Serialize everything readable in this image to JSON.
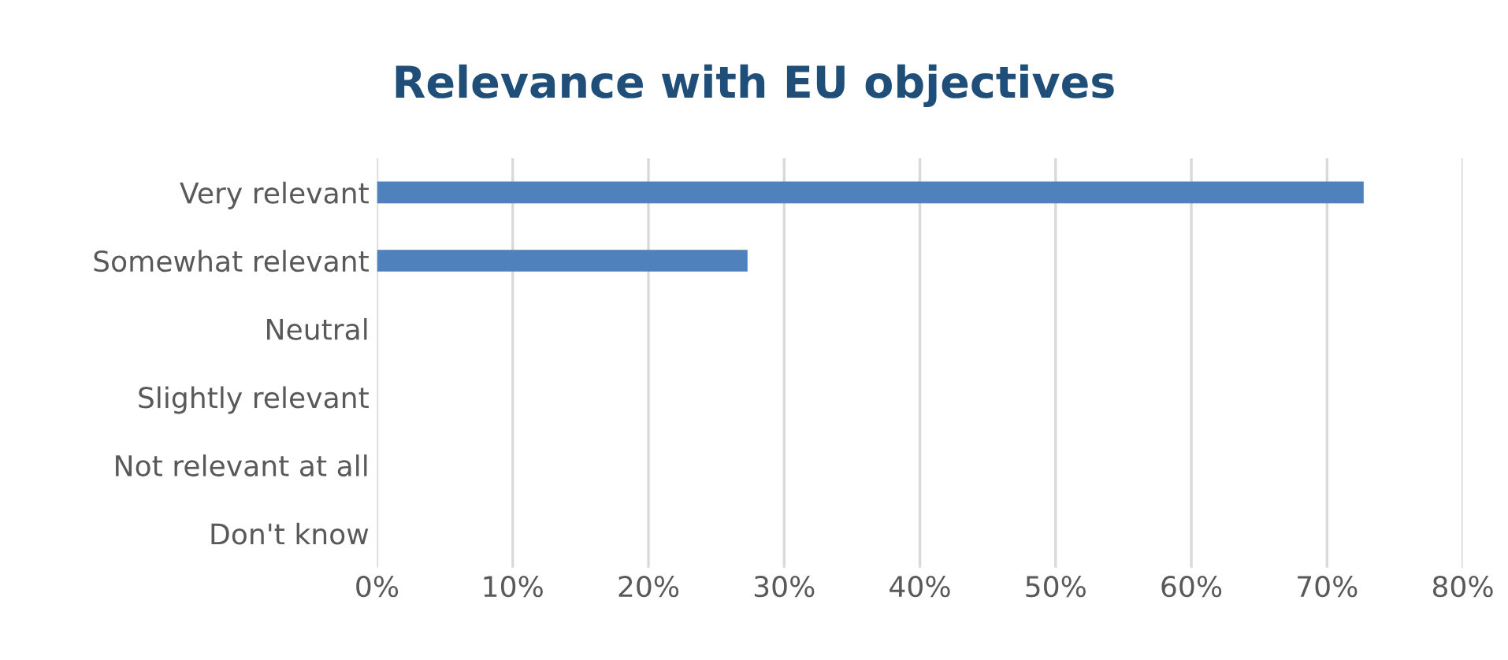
{
  "chart_data": {
    "type": "bar",
    "orientation": "horizontal",
    "title": "Relevance with EU objectives",
    "categories": [
      "Very relevant",
      "Somewhat relevant",
      "Neutral",
      "Slightly relevant",
      "Not relevant at all",
      "Don't know"
    ],
    "values": [
      72.7,
      27.3,
      0,
      0,
      0,
      0
    ],
    "color": "#4f81bd",
    "xlim": [
      0,
      80
    ],
    "xticks": [
      {
        "value": 0,
        "label": "0%"
      },
      {
        "value": 10,
        "label": "10%"
      },
      {
        "value": 20,
        "label": "20%"
      },
      {
        "value": 30,
        "label": "30%"
      },
      {
        "value": 40,
        "label": "40%"
      },
      {
        "value": 50,
        "label": "50%"
      },
      {
        "value": 60,
        "label": "60%"
      },
      {
        "value": 70,
        "label": "70%"
      },
      {
        "value": 80,
        "label": "80%"
      }
    ],
    "grid": "x",
    "legend": false
  }
}
